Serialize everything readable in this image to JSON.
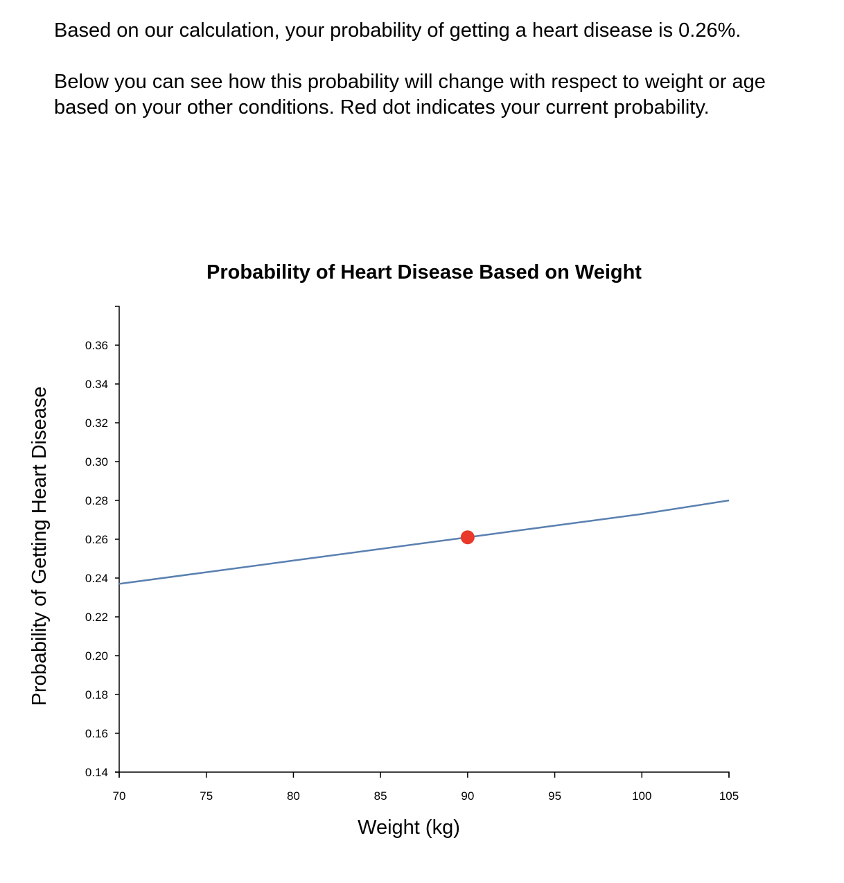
{
  "intro": {
    "line1": "Based on our calculation, your probability of getting a heart disease is 0.26%.",
    "line2": "Below you can see how this probability will change with respect to weight or age based on your other conditions. Red dot indicates your current probability."
  },
  "chart_data": {
    "type": "line",
    "title": "Probability of Heart Disease Based on Weight",
    "xlabel": "Weight (kg)",
    "ylabel": "Probability of Getting Heart Disease",
    "xlim": [
      70,
      105
    ],
    "ylim": [
      0.14,
      0.38
    ],
    "x_ticks": [
      70,
      75,
      80,
      85,
      90,
      95,
      100,
      105
    ],
    "y_ticks": [
      "0.14",
      "0.16",
      "0.18",
      "0.20",
      "0.22",
      "0.24",
      "0.26",
      "0.28",
      "0.30",
      "0.32",
      "0.34",
      "0.36"
    ],
    "grid": false,
    "series": [
      {
        "color": "#5a80b0",
        "x": [
          70,
          75,
          80,
          85,
          90,
          95,
          100,
          105
        ],
        "y": [
          0.237,
          0.243,
          0.249,
          0.255,
          0.261,
          0.267,
          0.273,
          0.28
        ]
      }
    ],
    "highlight_point": {
      "x": 90,
      "y": 0.261,
      "color": "#e8392a"
    }
  }
}
